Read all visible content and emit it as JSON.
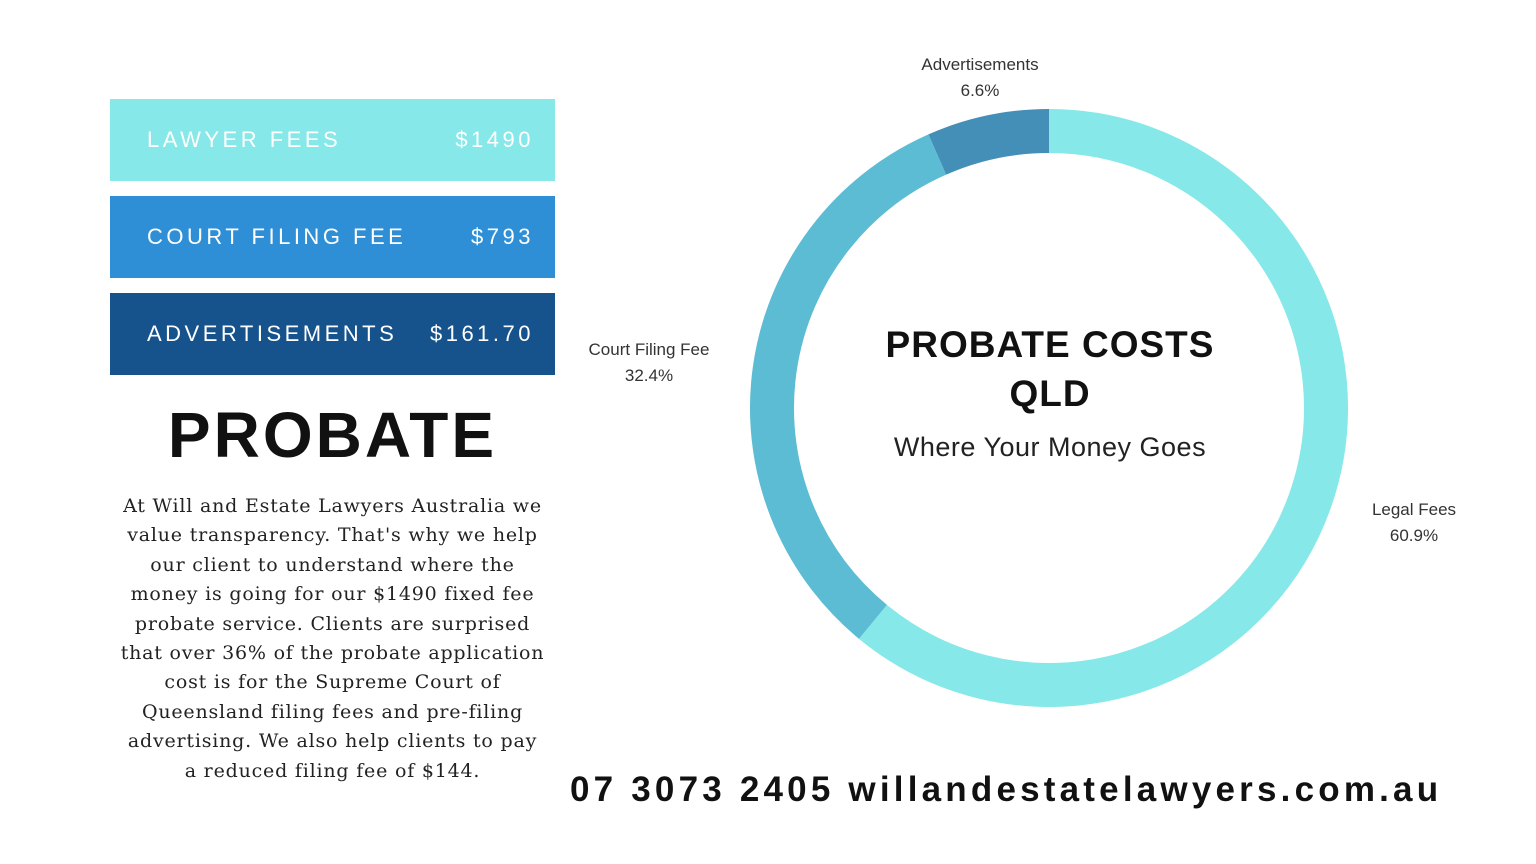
{
  "fee_bars": [
    {
      "label": "LAWYER FEES",
      "amount": "$1490",
      "color": "#86e8e8"
    },
    {
      "label": "COURT FILING FEE",
      "amount": "$793",
      "color": "#2e8fd6"
    },
    {
      "label": "ADVERTISEMENTS",
      "amount": "$161.70",
      "color": "#16538c"
    }
  ],
  "heading": "PROBATE",
  "description": "At Will and Estate Lawyers Australia we value transparency. That's why we help our client to understand where the money is going for our $1490 fixed fee probate service. Clients are surprised that over 36% of the probate application cost is for the Supreme Court of Queensland filing fees and pre-filing advertising. We also help clients to pay a reduced filing fee of $144.",
  "contact": "07 3073 2405 willandestatelawyers.com.au",
  "chart_data": {
    "type": "pie",
    "subtype": "donut",
    "title": "PROBATE COSTS QLD",
    "subtitle": "Where Your Money Goes",
    "categories": [
      "Legal Fees",
      "Court Filing Fee",
      "Advertisements"
    ],
    "values": [
      60.9,
      32.4,
      6.6
    ],
    "value_labels": [
      "60.9%",
      "32.4%",
      "6.6%"
    ],
    "colors": [
      "#86e8e8",
      "#5bbcd4",
      "#448fb8"
    ],
    "direction": "clockwise from top",
    "legend": "none"
  }
}
